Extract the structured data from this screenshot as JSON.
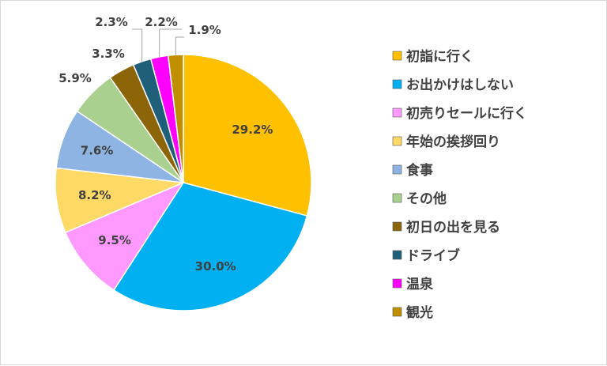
{
  "chart_data": {
    "type": "pie",
    "title": "",
    "legend_position": "right",
    "slices": [
      {
        "label": "初詣に行く",
        "value": 29.2,
        "display": "29.2%",
        "color": "#FFC000"
      },
      {
        "label": "お出かけはしない",
        "value": 30.0,
        "display": "30.0%",
        "color": "#00B0F0"
      },
      {
        "label": "初売りセールに行く",
        "value": 9.5,
        "display": "9.5%",
        "color": "#FF99FF"
      },
      {
        "label": "年始の挨拶回り",
        "value": 8.2,
        "display": "8.2%",
        "color": "#FFD966"
      },
      {
        "label": "食事",
        "value": 7.6,
        "display": "7.6%",
        "color": "#8EB4E3"
      },
      {
        "label": "その他",
        "value": 5.9,
        "display": "5.9%",
        "color": "#A9D08E"
      },
      {
        "label": "初日の出を見る",
        "value": 3.3,
        "display": "3.3%",
        "color": "#8B6508"
      },
      {
        "label": "ドライブ",
        "value": 2.3,
        "display": "2.3%",
        "color": "#1F5F7A"
      },
      {
        "label": "温泉",
        "value": 2.2,
        "display": "2.2%",
        "color": "#FF00FF"
      },
      {
        "label": "観光",
        "value": 1.9,
        "display": "1.9%",
        "color": "#BF8F00"
      }
    ]
  }
}
